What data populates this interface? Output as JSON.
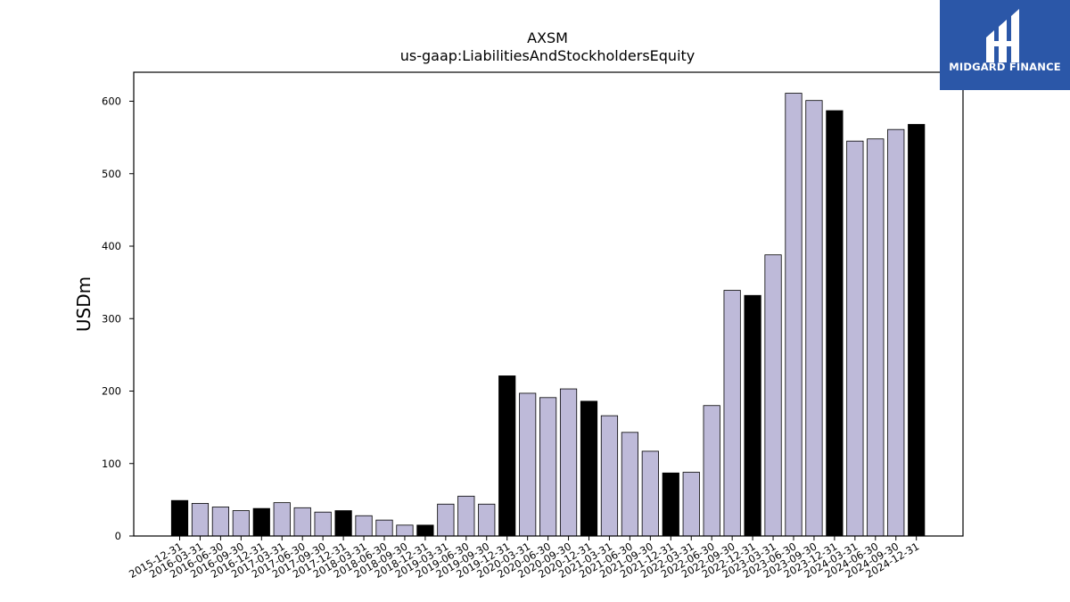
{
  "logo": {
    "text": "MIDGARD FINANCE",
    "color": "#2b57a8"
  },
  "chart_data": {
    "type": "bar",
    "title": "AXSM",
    "subtitle": "us-gaap:LiabilitiesAndStockholdersEquity",
    "ylabel": "USDm",
    "xlabel": "",
    "ylim": [
      0,
      640
    ],
    "yticks": [
      0,
      100,
      200,
      300,
      400,
      500,
      600
    ],
    "grid": false,
    "colors": {
      "annual": "#000000",
      "quarterly": "#bebad9"
    },
    "categories": [
      "2015-12-31",
      "2016-03-31",
      "2016-06-30",
      "2016-09-30",
      "2016-12-31",
      "2017-03-31",
      "2017-06-30",
      "2017-09-30",
      "2017-12-31",
      "2018-03-31",
      "2018-06-30",
      "2018-09-30",
      "2018-12-31",
      "2019-03-31",
      "2019-06-30",
      "2019-09-30",
      "2019-12-31",
      "2020-03-31",
      "2020-06-30",
      "2020-09-30",
      "2020-12-31",
      "2021-03-31",
      "2021-06-30",
      "2021-09-30",
      "2021-12-31",
      "2022-03-31",
      "2022-06-30",
      "2022-09-30",
      "2022-12-31",
      "2023-03-31",
      "2023-06-30",
      "2023-09-30",
      "2023-12-31",
      "2024-03-31",
      "2024-06-30",
      "2024-09-30",
      "2024-12-31"
    ],
    "values": [
      49,
      45,
      40,
      35,
      38,
      46,
      39,
      33,
      35,
      28,
      22,
      15,
      15,
      44,
      55,
      44,
      221,
      197,
      191,
      203,
      186,
      166,
      143,
      117,
      87,
      88,
      180,
      339,
      332,
      388,
      611,
      601,
      587,
      545,
      548,
      561,
      568
    ]
  }
}
